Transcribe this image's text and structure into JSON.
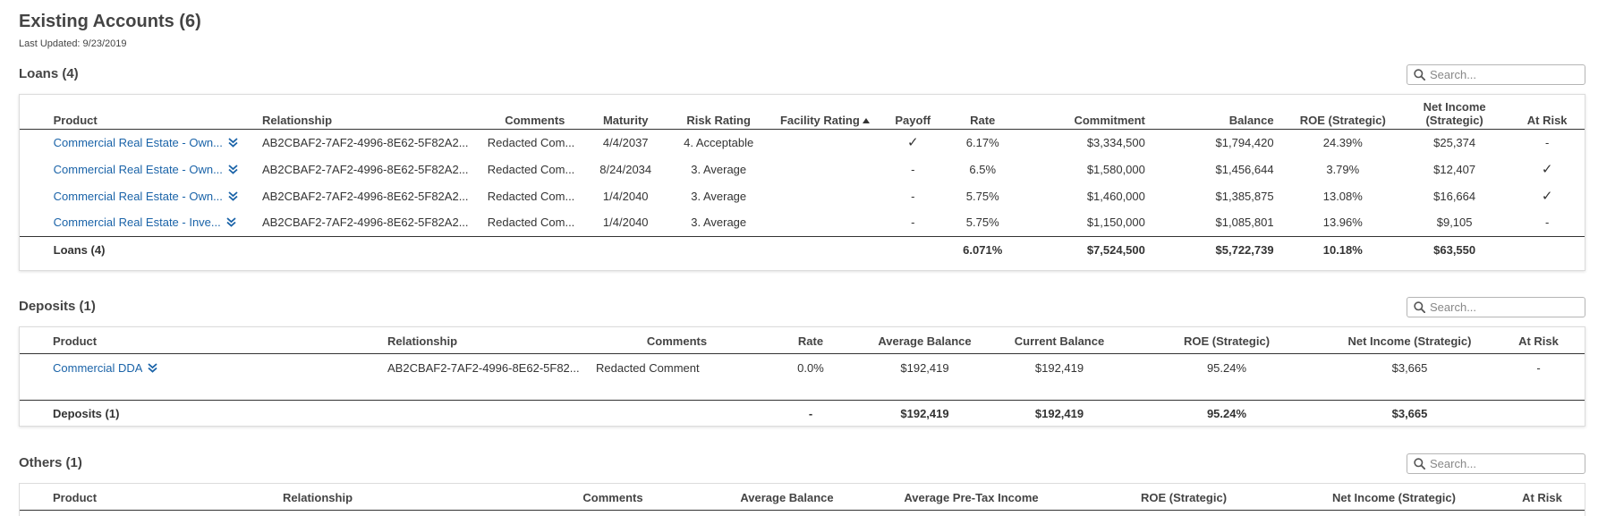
{
  "page": {
    "title": "Existing Accounts (6)",
    "last_updated": "Last Updated: 9/23/2019",
    "search_placeholder": "Search...",
    "link_color": "#1a63a8"
  },
  "loans": {
    "title": "Loans (4)",
    "headers": {
      "product": "Product",
      "relationship": "Relationship",
      "comments": "Comments",
      "maturity": "Maturity",
      "risk_rating": "Risk Rating",
      "facility_rating": "Facility Rating",
      "payoff": "Payoff",
      "rate": "Rate",
      "commitment": "Commitment",
      "balance": "Balance",
      "roe": "ROE (Strategic)",
      "net_income_1": "Net Income",
      "net_income_2": "(Strategic)",
      "at_risk": "At Risk"
    },
    "rows": [
      {
        "product": "Commercial Real Estate - Own...",
        "relationship": "AB2CBAF2-7AF2-4996-8E62-5F82A2...",
        "comments": "Redacted Com...",
        "maturity": "4/4/2037",
        "risk_rating": "4. Acceptable",
        "facility_rating": "",
        "payoff": "✓",
        "rate": "6.17%",
        "commitment": "$3,334,500",
        "balance": "$1,794,420",
        "roe": "24.39%",
        "net_income": "$25,374",
        "at_risk": "-"
      },
      {
        "product": "Commercial Real Estate - Own...",
        "relationship": "AB2CBAF2-7AF2-4996-8E62-5F82A2...",
        "comments": "Redacted Com...",
        "maturity": "8/24/2034",
        "risk_rating": "3. Average",
        "facility_rating": "",
        "payoff": "-",
        "rate": "6.5%",
        "commitment": "$1,580,000",
        "balance": "$1,456,644",
        "roe": "3.79%",
        "net_income": "$12,407",
        "at_risk": "✓"
      },
      {
        "product": "Commercial Real Estate - Own...",
        "relationship": "AB2CBAF2-7AF2-4996-8E62-5F82A2...",
        "comments": "Redacted Com...",
        "maturity": "1/4/2040",
        "risk_rating": "3. Average",
        "facility_rating": "",
        "payoff": "-",
        "rate": "5.75%",
        "commitment": "$1,460,000",
        "balance": "$1,385,875",
        "roe": "13.08%",
        "net_income": "$16,664",
        "at_risk": "✓"
      },
      {
        "product": "Commercial Real Estate - Inve...",
        "relationship": "AB2CBAF2-7AF2-4996-8E62-5F82A2...",
        "comments": "Redacted Com...",
        "maturity": "1/4/2040",
        "risk_rating": "3. Average",
        "facility_rating": "",
        "payoff": "-",
        "rate": "5.75%",
        "commitment": "$1,150,000",
        "balance": "$1,085,801",
        "roe": "13.96%",
        "net_income": "$9,105",
        "at_risk": "-"
      }
    ],
    "total": {
      "label": "Loans (4)",
      "rate": "6.071%",
      "commitment": "$7,524,500",
      "balance": "$5,722,739",
      "roe": "10.18%",
      "net_income": "$63,550"
    }
  },
  "deposits": {
    "title": "Deposits (1)",
    "headers": {
      "product": "Product",
      "relationship": "Relationship",
      "comments": "Comments",
      "rate": "Rate",
      "avg_balance": "Average Balance",
      "current_balance": "Current Balance",
      "roe": "ROE (Strategic)",
      "net_income": "Net Income (Strategic)",
      "at_risk": "At Risk"
    },
    "rows": [
      {
        "product": "Commercial DDA",
        "relationship": "AB2CBAF2-7AF2-4996-8E62-5F82...",
        "comments": "Redacted Comment",
        "rate": "0.0%",
        "avg_balance": "$192,419",
        "current_balance": "$192,419",
        "roe": "95.24%",
        "net_income": "$3,665",
        "at_risk": "-"
      }
    ],
    "total": {
      "label": "Deposits (1)",
      "rate": "-",
      "avg_balance": "$192,419",
      "current_balance": "$192,419",
      "roe": "95.24%",
      "net_income": "$3,665"
    }
  },
  "others": {
    "title": "Others (1)",
    "headers": {
      "product": "Product",
      "relationship": "Relationship",
      "comments": "Comments",
      "avg_balance": "Average Balance",
      "avg_pretax_income": "Average Pre-Tax Income",
      "roe": "ROE (Strategic)",
      "net_income": "Net Income (Strategic)",
      "at_risk": "At Risk"
    }
  }
}
